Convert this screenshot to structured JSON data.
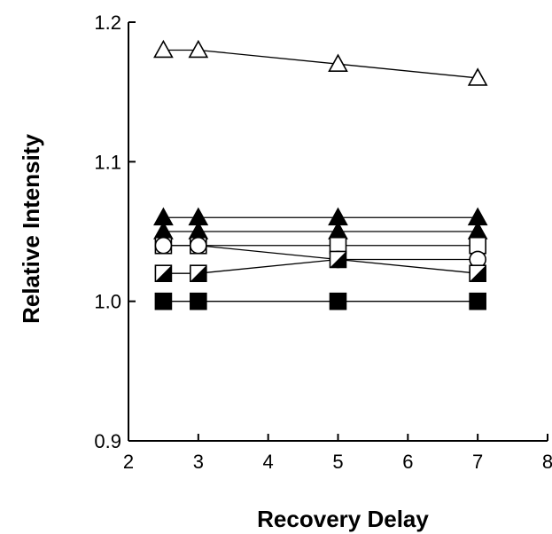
{
  "chart_data": {
    "type": "scatter",
    "title": "",
    "xlabel": "Recovery Delay",
    "ylabel": "Relative Intensity",
    "xlim": [
      2,
      8
    ],
    "ylim": [
      0.9,
      1.2
    ],
    "x_ticks": [
      2,
      3,
      4,
      5,
      6,
      7,
      8
    ],
    "x_tick_labels": [
      "2",
      "3",
      "4",
      "5",
      "6",
      "7",
      "8"
    ],
    "y_ticks": [
      0.9,
      1.0,
      1.1,
      1.2
    ],
    "y_tick_labels": [
      "0.9",
      "1.0",
      "1.1",
      "1.2"
    ],
    "grid": false,
    "legend": "none",
    "series": [
      {
        "marker": "open-triangle",
        "x": [
          2.5,
          3,
          5,
          7
        ],
        "y": [
          1.18,
          1.18,
          1.17,
          1.16
        ]
      },
      {
        "marker": "filled-triangle",
        "x": [
          2.5,
          3,
          5,
          7
        ],
        "y": [
          1.06,
          1.06,
          1.06,
          1.06
        ]
      },
      {
        "marker": "filled-triangle",
        "x": [
          2.5,
          3,
          5,
          7
        ],
        "y": [
          1.05,
          1.05,
          1.05,
          1.05
        ]
      },
      {
        "marker": "open-square",
        "x": [
          2.5,
          3,
          5,
          7
        ],
        "y": [
          1.04,
          1.04,
          1.04,
          1.04
        ]
      },
      {
        "marker": "open-circle",
        "x": [
          2.5,
          3,
          5,
          7
        ],
        "y": [
          1.04,
          1.04,
          1.03,
          1.03
        ]
      },
      {
        "marker": "half-filled-square",
        "x": [
          2.5,
          3,
          5,
          7
        ],
        "y": [
          1.02,
          1.02,
          1.03,
          1.02
        ]
      },
      {
        "marker": "filled-square",
        "x": [
          2.5,
          3,
          5,
          7
        ],
        "y": [
          1.0,
          1.0,
          1.0,
          1.0
        ]
      }
    ]
  }
}
